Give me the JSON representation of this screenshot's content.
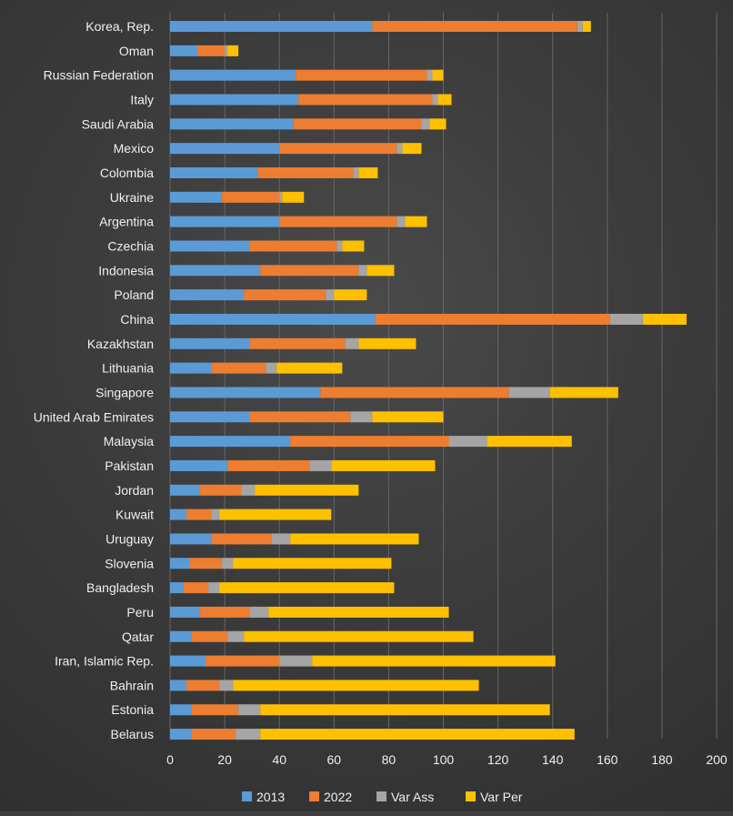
{
  "chart_data": {
    "type": "bar",
    "orientation": "horizontal",
    "stacked": true,
    "title": "",
    "xlabel": "",
    "ylabel": "",
    "xlim": [
      0,
      200
    ],
    "x_ticks": [
      "0",
      "20",
      "40",
      "60",
      "80",
      "100",
      "120",
      "140",
      "160",
      "180",
      "200"
    ],
    "grid": "vertical",
    "legend_position": "bottom",
    "colors": {
      "2013": "#5b9bd5",
      "2022": "#ed7d31",
      "Var Ass": "#a5a5a5",
      "Var Per": "#ffc000",
      "grid": "#666666",
      "text": "#f0f0f0"
    },
    "categories": [
      "Korea, Rep.",
      "Oman",
      "Russian Federation",
      "Italy",
      "Saudi Arabia",
      "Mexico",
      "Colombia",
      "Ukraine",
      "Argentina",
      "Czechia",
      "Indonesia",
      "Poland",
      "China",
      "Kazakhstan",
      "Lithuania",
      "Singapore",
      "United Arab Emirates",
      "Malaysia",
      "Pakistan",
      "Jordan",
      "Kuwait",
      "Uruguay",
      "Slovenia",
      "Bangladesh",
      "Peru",
      "Qatar",
      "Iran, Islamic Rep.",
      "Bahrain",
      "Estonia",
      "Belarus"
    ],
    "series": [
      {
        "name": "2013",
        "values": [
          74,
          10,
          46,
          47,
          45,
          40,
          32,
          19,
          40,
          29,
          33,
          27,
          75,
          29,
          15,
          55,
          29,
          44,
          21,
          11,
          6,
          15,
          7,
          5,
          11,
          8,
          13,
          6,
          8,
          8
        ]
      },
      {
        "name": "2022",
        "values": [
          75,
          10,
          48,
          49,
          47,
          43,
          35,
          21,
          43,
          32,
          36,
          30,
          86,
          35,
          20,
          69,
          37,
          58,
          30,
          15,
          9,
          22,
          12,
          9,
          18,
          13,
          27,
          12,
          17,
          16
        ]
      },
      {
        "name": "Var Ass",
        "values": [
          2,
          1,
          2,
          2,
          3,
          2,
          2,
          1,
          3,
          2,
          3,
          3,
          12,
          5,
          4,
          15,
          8,
          14,
          8,
          5,
          3,
          7,
          4,
          4,
          7,
          6,
          12,
          5,
          8,
          9
        ]
      },
      {
        "name": "Var Per",
        "values": [
          3,
          4,
          4,
          5,
          6,
          7,
          7,
          8,
          8,
          8,
          10,
          12,
          16,
          21,
          24,
          25,
          26,
          31,
          38,
          38,
          41,
          47,
          58,
          64,
          66,
          84,
          89,
          90,
          106,
          115
        ]
      }
    ]
  }
}
